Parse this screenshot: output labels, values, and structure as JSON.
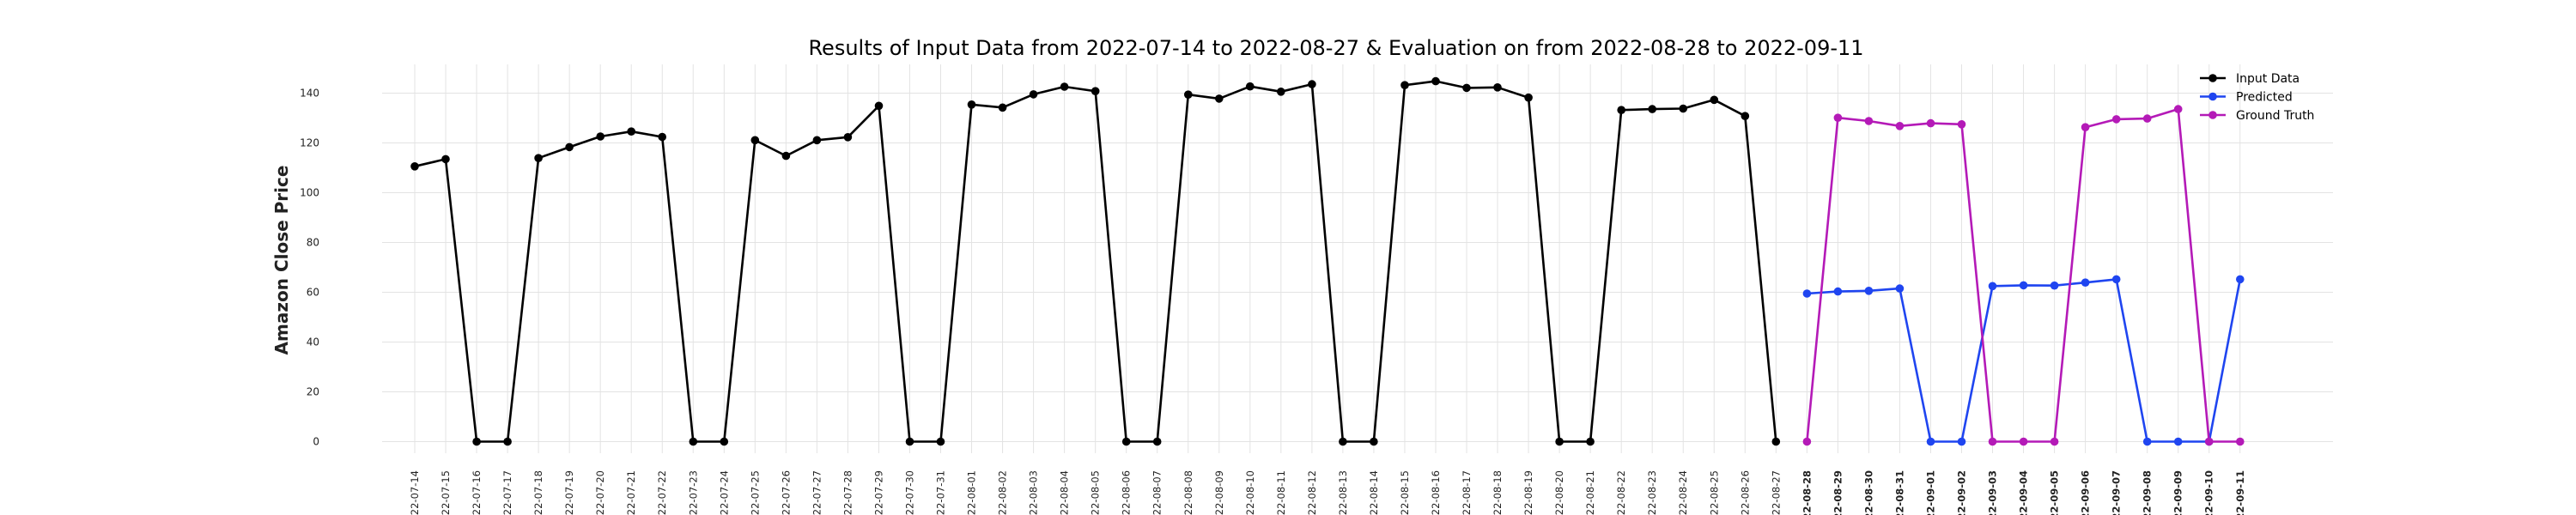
{
  "chart_data": {
    "type": "line",
    "title": "Results of Input Data from 2022-07-14 to 2022-08-27 & Evaluation on from 2022-08-28 to 2022-09-11",
    "xlabel": "",
    "ylabel": "Amazon Close Price",
    "ylim": [
      -5,
      152
    ],
    "yticks": [
      0,
      20,
      40,
      60,
      80,
      100,
      120,
      140
    ],
    "grid": true,
    "legend_position": "top-right",
    "categories": [
      "2022-07-14",
      "2022-07-15",
      "2022-07-16",
      "2022-07-17",
      "2022-07-18",
      "2022-07-19",
      "2022-07-20",
      "2022-07-21",
      "2022-07-22",
      "2022-07-23",
      "2022-07-24",
      "2022-07-25",
      "2022-07-26",
      "2022-07-27",
      "2022-07-28",
      "2022-07-29",
      "2022-07-30",
      "2022-07-31",
      "2022-08-01",
      "2022-08-02",
      "2022-08-03",
      "2022-08-04",
      "2022-08-05",
      "2022-08-06",
      "2022-08-07",
      "2022-08-08",
      "2022-08-09",
      "2022-08-10",
      "2022-08-11",
      "2022-08-12",
      "2022-08-13",
      "2022-08-14",
      "2022-08-15",
      "2022-08-16",
      "2022-08-17",
      "2022-08-18",
      "2022-08-19",
      "2022-08-20",
      "2022-08-21",
      "2022-08-22",
      "2022-08-23",
      "2022-08-24",
      "2022-08-25",
      "2022-08-26",
      "2022-08-27",
      "2022-08-28",
      "2022-08-29",
      "2022-08-30",
      "2022-08-31",
      "2022-09-01",
      "2022-09-02",
      "2022-09-03",
      "2022-09-04",
      "2022-09-05",
      "2022-09-06",
      "2022-09-07",
      "2022-09-08",
      "2022-09-09",
      "2022-09-10",
      "2022-09-11"
    ],
    "tick_labels": [
      "-22-07-14",
      "-22-07-15",
      "-22-07-16",
      "-22-07-17",
      "-22-07-18",
      "-22-07-19",
      "-22-07-20",
      "-22-07-21",
      "-22-07-22",
      "-22-07-23",
      "-22-07-24",
      "-22-07-25",
      "-22-07-26",
      "-22-07-27",
      "-22-07-28",
      "-22-07-29",
      "-22-07-30",
      "-22-07-31",
      "-22-08-01",
      "-22-08-02",
      "-22-08-03",
      "-22-08-04",
      "-22-08-05",
      "-22-08-06",
      "-22-08-07",
      "-22-08-08",
      "-22-08-09",
      "-22-08-10",
      "-22-08-11",
      "-22-08-12",
      "-22-08-13",
      "-22-08-14",
      "-22-08-15",
      "-22-08-16",
      "-22-08-17",
      "-22-08-18",
      "-22-08-19",
      "-22-08-20",
      "-22-08-21",
      "-22-08-22",
      "-22-08-23",
      "-22-08-24",
      "-22-08-25",
      "-22-08-26",
      "-22-08-27",
      "-22-08-28",
      "-22-08-29",
      "-22-08-30",
      "-22-08-31",
      "-22-09-01",
      "-22-09-02",
      "-22-09-03",
      "-22-09-04",
      "-22-09-05",
      "-22-09-06",
      "-22-09-07",
      "-22-09-08",
      "-22-09-09",
      "-22-09-10",
      "-22-09-11"
    ],
    "bold_tick_from": "2022-08-28",
    "series": [
      {
        "name": "Input Data",
        "color": "#000000",
        "x": [
          "2022-07-14",
          "2022-07-15",
          "2022-07-16",
          "2022-07-17",
          "2022-07-18",
          "2022-07-19",
          "2022-07-20",
          "2022-07-21",
          "2022-07-22",
          "2022-07-23",
          "2022-07-24",
          "2022-07-25",
          "2022-07-26",
          "2022-07-27",
          "2022-07-28",
          "2022-07-29",
          "2022-07-30",
          "2022-07-31",
          "2022-08-01",
          "2022-08-02",
          "2022-08-03",
          "2022-08-04",
          "2022-08-05",
          "2022-08-06",
          "2022-08-07",
          "2022-08-08",
          "2022-08-09",
          "2022-08-10",
          "2022-08-11",
          "2022-08-12",
          "2022-08-13",
          "2022-08-14",
          "2022-08-15",
          "2022-08-16",
          "2022-08-17",
          "2022-08-18",
          "2022-08-19",
          "2022-08-20",
          "2022-08-21",
          "2022-08-22",
          "2022-08-23",
          "2022-08-24",
          "2022-08-25",
          "2022-08-26",
          "2022-08-27"
        ],
        "values": [
          110.6,
          113.5,
          0,
          0,
          113.9,
          118.3,
          122.6,
          124.6,
          122.4,
          0,
          0,
          121.1,
          114.8,
          121.1,
          122.3,
          134.9,
          0,
          0,
          135.4,
          134.2,
          139.5,
          142.6,
          140.8,
          0,
          0,
          139.4,
          137.8,
          142.7,
          140.6,
          143.6,
          0,
          0,
          143.2,
          144.8,
          142.1,
          142.3,
          138.2,
          0,
          0,
          133.2,
          133.6,
          133.8,
          137.3,
          130.8,
          0
        ]
      },
      {
        "name": "Predicted",
        "color": "#1f45f0",
        "x": [
          "2022-08-28",
          "2022-08-29",
          "2022-08-30",
          "2022-08-31",
          "2022-09-01",
          "2022-09-02",
          "2022-09-03",
          "2022-09-04",
          "2022-09-05",
          "2022-09-06",
          "2022-09-07",
          "2022-09-08",
          "2022-09-09",
          "2022-09-10",
          "2022-09-11"
        ],
        "values": [
          59.5,
          60.3,
          60.6,
          61.5,
          0,
          0,
          62.5,
          62.8,
          62.7,
          63.9,
          65.2,
          0,
          0,
          0,
          65.2
        ]
      },
      {
        "name": "Ground Truth",
        "color": "#b41ab7",
        "x": [
          "2022-08-28",
          "2022-08-29",
          "2022-08-30",
          "2022-08-31",
          "2022-09-01",
          "2022-09-02",
          "2022-09-03",
          "2022-09-04",
          "2022-09-05",
          "2022-09-06",
          "2022-09-07",
          "2022-09-08",
          "2022-09-09",
          "2022-09-10",
          "2022-09-11"
        ],
        "values": [
          0,
          130.1,
          128.8,
          126.8,
          127.9,
          127.5,
          0,
          0,
          0,
          126.3,
          129.5,
          129.8,
          133.6,
          0,
          0
        ]
      }
    ]
  }
}
